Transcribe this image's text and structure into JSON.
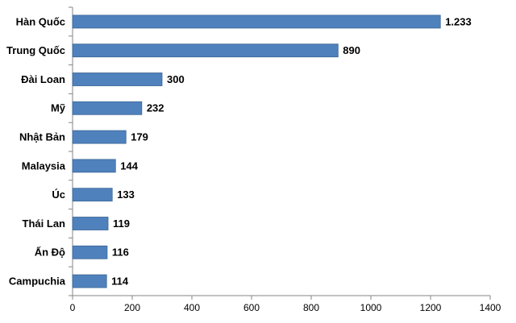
{
  "chart_data": {
    "type": "hbar",
    "categories": [
      "Hàn Quốc",
      "Trung Quốc",
      "Đài Loan",
      "Mỹ",
      "Nhật Bản",
      "Malaysia",
      "Úc",
      "Thái Lan",
      "Ấn Độ",
      "Campuchia"
    ],
    "values": [
      1233,
      890,
      300,
      232,
      179,
      144,
      133,
      119,
      116,
      114
    ],
    "value_labels": [
      "1.233",
      "890",
      "300",
      "232",
      "179",
      "144",
      "133",
      "119",
      "116",
      "114"
    ],
    "color": "#4f81bd",
    "xlim": [
      0,
      1400
    ],
    "xticks": [
      0,
      200,
      400,
      600,
      800,
      1000,
      1200,
      1400
    ],
    "grid": false
  }
}
